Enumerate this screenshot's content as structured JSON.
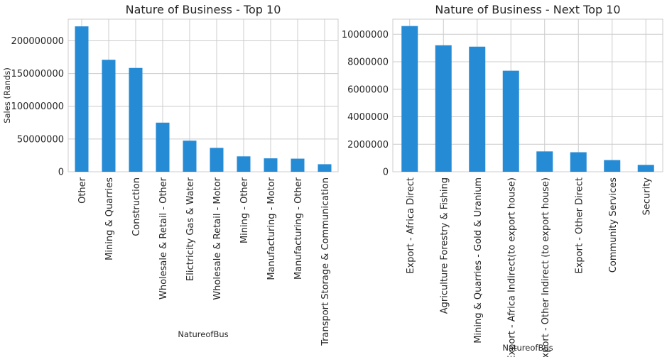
{
  "chart_data": [
    {
      "type": "bar",
      "title": "Nature of Business - Top 10",
      "xlabel": "NatureofBus",
      "ylabel": "Sales (Rands)",
      "categories": [
        "Other",
        "Mining & Quarries",
        "Construction",
        "Wholesale & Retail - Other",
        "Elictricity Gas & Water",
        "Wholesale & Retail - Motor",
        "Mining - Other",
        "Manufacturing - Motor",
        "Manufacturing - Other",
        "Transport Storage & Communication"
      ],
      "values": [
        222000000,
        171000000,
        158500000,
        75000000,
        47500000,
        36500000,
        23500000,
        20500000,
        20000000,
        11500000
      ],
      "ylim": [
        0,
        233000000
      ],
      "yticks": [
        0,
        50000000,
        100000000,
        150000000,
        200000000
      ],
      "grid": true,
      "color": "#268bd5"
    },
    {
      "type": "bar",
      "title": "Nature of Business - Next Top 10",
      "xlabel": "NatureofBus",
      "ylabel": "",
      "categories": [
        "Export - Africa Direct",
        "Agriculture Forestry & Fishing",
        "Mining & Quarries - Gold & Uranium",
        "Export - Africa Indirect(to export house)",
        "Export - Other Indirect (to export house)",
        "Export - Other Direct",
        "Community Services",
        "Security"
      ],
      "values": [
        10600000,
        9200000,
        9100000,
        7350000,
        1480000,
        1420000,
        850000,
        500000
      ],
      "ylim": [
        0,
        11100000
      ],
      "yticks": [
        0,
        2000000,
        4000000,
        6000000,
        8000000,
        10000000
      ],
      "grid": true,
      "color": "#268bd5"
    }
  ]
}
